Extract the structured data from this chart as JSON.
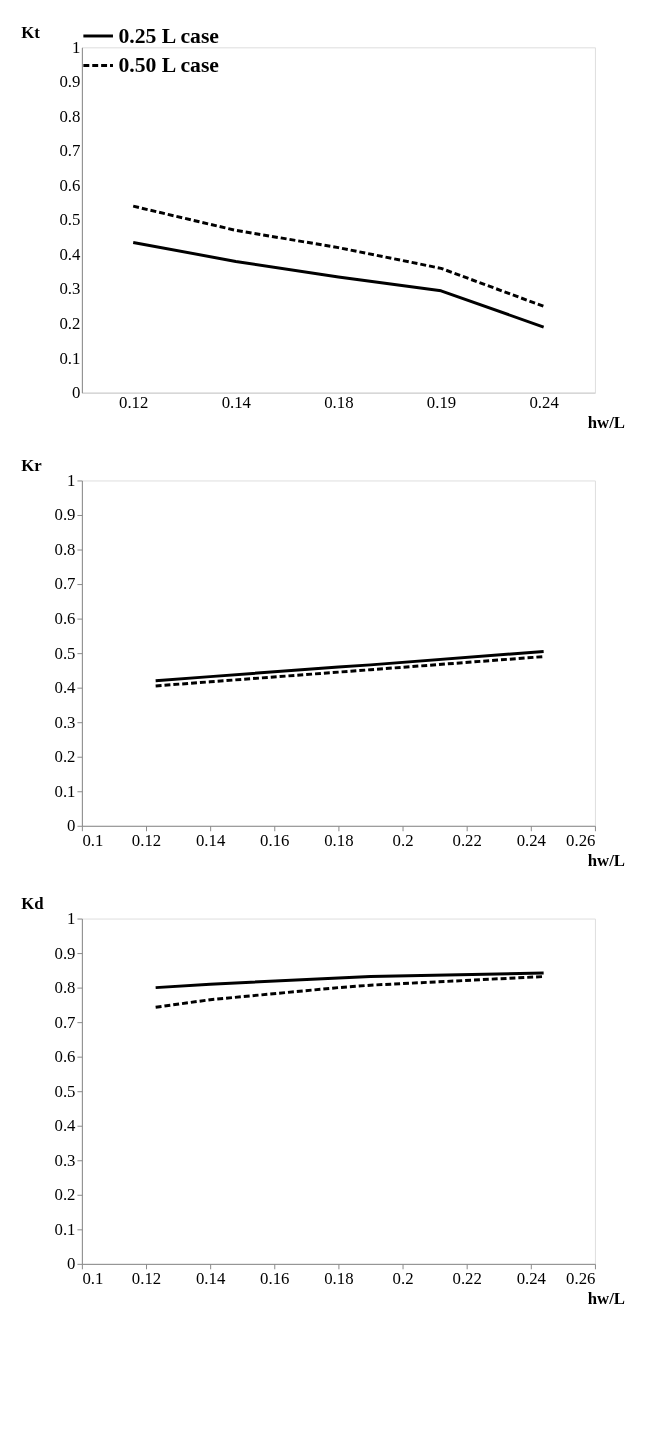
{
  "chart_data": [
    {
      "type": "line",
      "ylabel": "Kt",
      "xlabel": "hw/L",
      "categories": [
        "0.12",
        "0.14",
        "0.18",
        "0.19",
        "0.24"
      ],
      "ylim": [
        0,
        1
      ],
      "yticks": [
        0,
        0.1,
        0.2,
        0.3,
        0.4,
        0.5,
        0.6,
        0.7,
        0.8,
        0.9,
        1
      ],
      "grid": false,
      "legend": "top",
      "marker": "none",
      "series": [
        {
          "name": "0.25 L case",
          "color": "#000000",
          "line_style": "solid",
          "values": [
            0.435,
            0.38,
            0.335,
            0.295,
            0.19
          ]
        },
        {
          "name": "0.50 L case",
          "color": "#000000",
          "line_style": "dashed",
          "values": [
            0.54,
            0.47,
            0.42,
            0.36,
            0.25
          ]
        }
      ]
    },
    {
      "type": "line",
      "ylabel": "Kr",
      "xlabel": "hw/L",
      "xlim": [
        0.1,
        0.26
      ],
      "xticks": [
        0.1,
        0.12,
        0.14,
        0.16,
        0.18,
        0.2,
        0.22,
        0.24,
        0.26
      ],
      "ylim": [
        0,
        1
      ],
      "yticks": [
        0,
        0.1,
        0.2,
        0.3,
        0.4,
        0.5,
        0.6,
        0.7,
        0.8,
        0.9,
        1
      ],
      "grid": false,
      "marker": "none",
      "series": [
        {
          "color": "#000000",
          "line_style": "solid",
          "x": [
            0.123,
            0.14,
            0.18,
            0.19,
            0.244
          ],
          "values": [
            0.42,
            0.432,
            0.46,
            0.466,
            0.505
          ]
        },
        {
          "color": "#000000",
          "line_style": "dashed",
          "x": [
            0.123,
            0.14,
            0.18,
            0.19,
            0.244
          ],
          "values": [
            0.405,
            0.417,
            0.445,
            0.452,
            0.49
          ]
        }
      ]
    },
    {
      "type": "line",
      "ylabel": "Kd",
      "xlabel": "hw/L",
      "xlim": [
        0.1,
        0.26
      ],
      "xticks": [
        0.1,
        0.12,
        0.14,
        0.16,
        0.18,
        0.2,
        0.22,
        0.24,
        0.26
      ],
      "ylim": [
        0,
        1
      ],
      "yticks": [
        0,
        0.1,
        0.2,
        0.3,
        0.4,
        0.5,
        0.6,
        0.7,
        0.8,
        0.9,
        1
      ],
      "grid": false,
      "marker": "none",
      "series": [
        {
          "color": "#000000",
          "line_style": "solid",
          "x": [
            0.123,
            0.14,
            0.18,
            0.19,
            0.244
          ],
          "values": [
            0.8,
            0.81,
            0.828,
            0.832,
            0.842
          ]
        },
        {
          "color": "#000000",
          "line_style": "dashed",
          "x": [
            0.123,
            0.14,
            0.18,
            0.19,
            0.244
          ],
          "values": [
            0.743,
            0.765,
            0.8,
            0.807,
            0.832
          ]
        }
      ]
    }
  ]
}
